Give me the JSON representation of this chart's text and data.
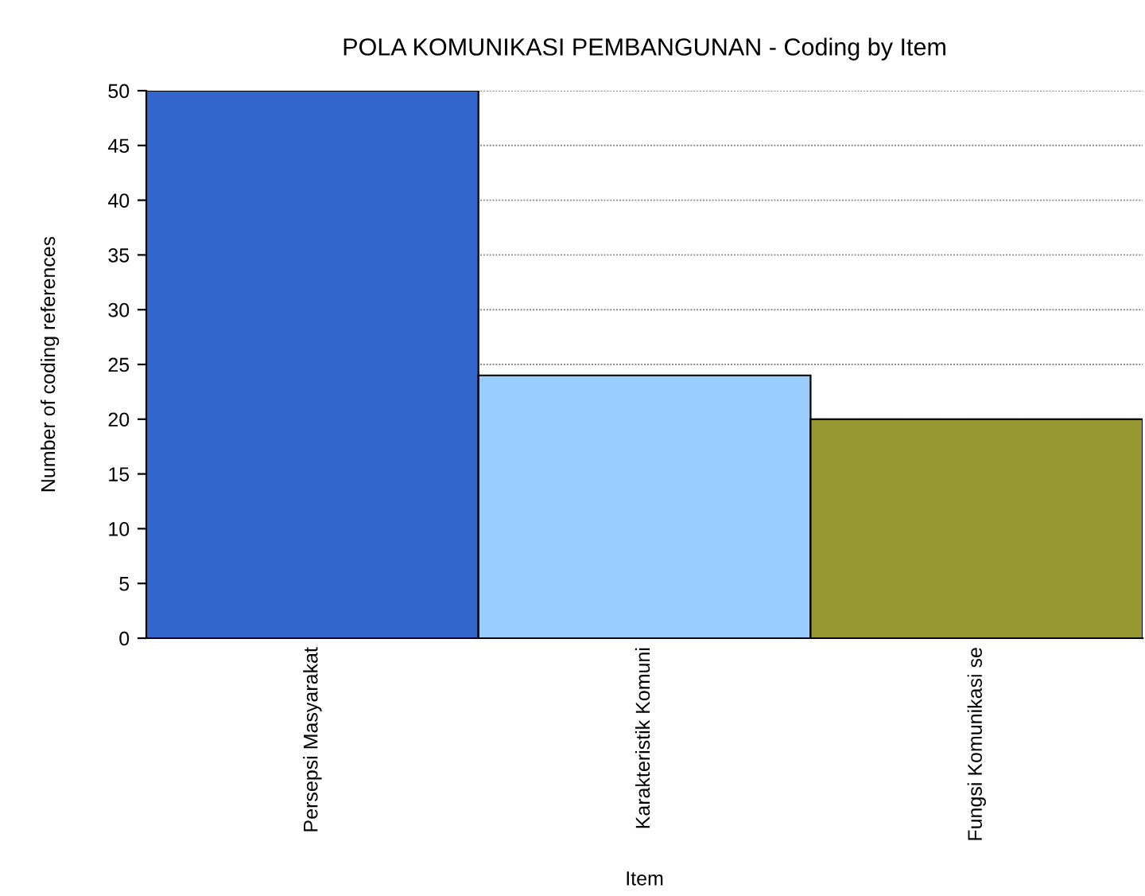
{
  "chart_data": {
    "type": "bar",
    "title": "POLA KOMUNIKASI PEMBANGUNAN - Coding by Item",
    "xlabel": "Item",
    "ylabel": "Number of coding references",
    "categories": [
      "Persepsi Masyarakat",
      "Karakteristik Komuni",
      "Fungsi Komunikasi se"
    ],
    "values": [
      50,
      24,
      20
    ],
    "colors": [
      "#3366cc",
      "#99ccff",
      "#999933"
    ],
    "ylim": [
      0,
      50
    ],
    "yticks": [
      0,
      5,
      10,
      15,
      20,
      25,
      30,
      35,
      40,
      45,
      50
    ],
    "grid": "y"
  }
}
